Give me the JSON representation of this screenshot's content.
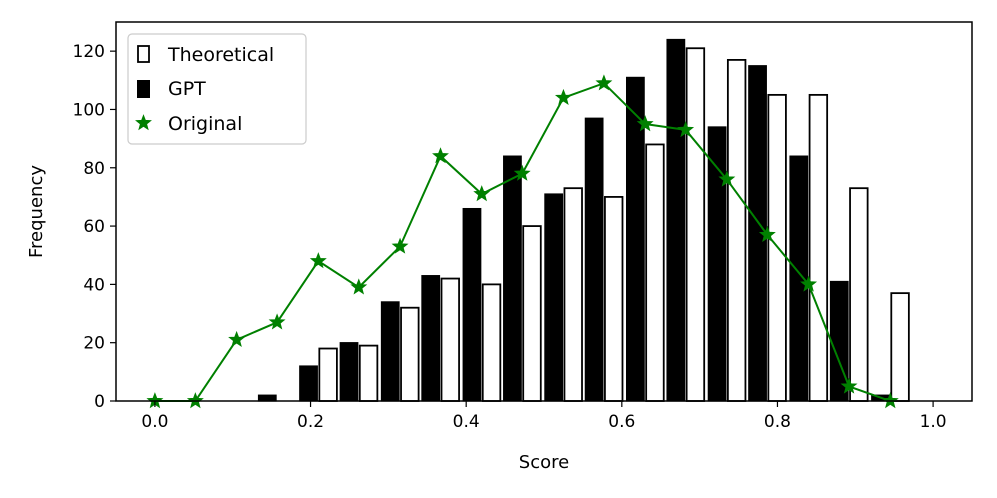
{
  "chart_data": {
    "type": "bar",
    "xlabel": "Score",
    "ylabel": "Frequency",
    "xlim": [
      -0.05,
      1.05
    ],
    "ylim": [
      0,
      130
    ],
    "xticks": [
      0.0,
      0.2,
      0.4,
      0.6,
      0.8,
      1.0
    ],
    "xtick_labels": [
      "0.0",
      "0.2",
      "0.4",
      "0.6",
      "0.8",
      "1.0"
    ],
    "yticks": [
      0,
      20,
      40,
      60,
      80,
      100,
      120
    ],
    "ytick_labels": [
      "0",
      "20",
      "40",
      "60",
      "80",
      "100",
      "120"
    ],
    "legend_position": "top-left",
    "bin_centers": [
      0.0,
      0.052,
      0.105,
      0.157,
      0.21,
      0.262,
      0.315,
      0.367,
      0.42,
      0.472,
      0.525,
      0.577,
      0.63,
      0.682,
      0.735,
      0.787,
      0.84,
      0.892,
      0.945
    ],
    "series": [
      {
        "name": "Theoretical",
        "kind": "bar",
        "style": "hollow",
        "color": "#000000",
        "values": [
          0,
          0,
          0,
          0,
          18,
          19,
          32,
          42,
          40,
          60,
          73,
          70,
          88,
          121,
          117,
          105,
          105,
          73,
          37
        ]
      },
      {
        "name": "GPT",
        "kind": "bar",
        "style": "filled",
        "color": "#000000",
        "values": [
          0,
          0,
          0,
          2,
          12,
          20,
          34,
          43,
          66,
          84,
          71,
          97,
          111,
          124,
          94,
          115,
          84,
          41,
          2
        ]
      },
      {
        "name": "Original",
        "kind": "line",
        "marker": "star",
        "color": "#008000",
        "values": [
          0,
          0,
          21,
          27,
          48,
          39,
          53,
          84,
          71,
          78,
          104,
          109,
          95,
          93,
          76,
          57,
          40,
          5,
          0
        ]
      }
    ]
  }
}
